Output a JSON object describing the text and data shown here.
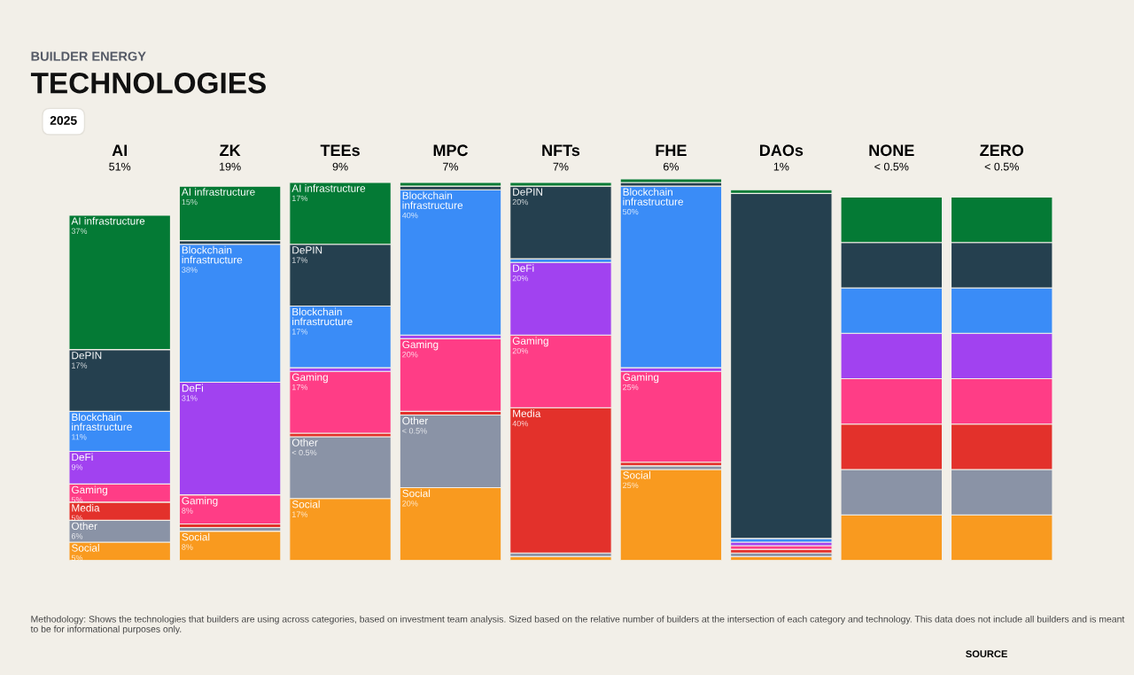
{
  "chart_data": {
    "type": "bar",
    "stacked": true,
    "subtitle": "BUILDER ENERGY",
    "title": "TECHNOLOGIES",
    "categories": [
      "AI",
      "ZK",
      "TEEs",
      "MPC",
      "NFTs",
      "FHE",
      "DAOs",
      "NONE",
      "ZERO"
    ],
    "series": [
      {
        "name": "Social",
        "color": "#f99a1f",
        "values": [
          5,
          8,
          17,
          20,
          1,
          25,
          1,
          12.5,
          12.5
        ],
        "value_labels": [
          "5%",
          "8%",
          "17%",
          "20%",
          null,
          "25%",
          null,
          null,
          null
        ]
      },
      {
        "name": "Other",
        "color": "#8a93a6",
        "values": [
          6,
          1,
          17,
          20,
          1,
          1,
          1,
          12.5,
          12.5
        ],
        "value_labels": [
          "6%",
          null,
          "< 0.5%",
          "< 0.5%",
          null,
          null,
          null,
          null,
          null
        ]
      },
      {
        "name": "Media",
        "color": "#e3312b",
        "values": [
          5,
          1,
          1,
          1,
          40,
          1,
          1,
          12.5,
          12.5
        ],
        "value_labels": [
          "5%",
          null,
          null,
          null,
          "40%",
          null,
          null,
          null,
          null
        ]
      },
      {
        "name": "Gaming",
        "color": "#ff3d86",
        "values": [
          5,
          8,
          17,
          20,
          20,
          25,
          1,
          12.5,
          12.5
        ],
        "value_labels": [
          "5%",
          "8%",
          "17%",
          "20%",
          "20%",
          "25%",
          null,
          null,
          null
        ]
      },
      {
        "name": "DeFi",
        "color": "#a142f0",
        "values": [
          9,
          31,
          1,
          1,
          20,
          1,
          1,
          12.5,
          12.5
        ],
        "value_labels": [
          "9%",
          "31%",
          null,
          null,
          "20%",
          null,
          null,
          null,
          null
        ]
      },
      {
        "name": "Blockchain infrastructure",
        "color": "#3a8cf7",
        "values": [
          11,
          38,
          17,
          40,
          1,
          50,
          1,
          12.5,
          12.5
        ],
        "value_labels": [
          "11%",
          "38%",
          "17%",
          "40%",
          null,
          "50%",
          null,
          null,
          null
        ]
      },
      {
        "name": "DePIN",
        "color": "#25404f",
        "values": [
          17,
          1,
          17,
          1,
          20,
          1,
          95,
          12.5,
          12.5
        ],
        "value_labels": [
          "17%",
          null,
          "17%",
          null,
          "20%",
          null,
          null,
          null,
          null
        ]
      },
      {
        "name": "AI infrastructure",
        "color": "#047a35",
        "values": [
          37,
          15,
          17,
          1,
          1,
          1,
          1,
          12.5,
          12.5
        ],
        "value_labels": [
          "37%",
          "15%",
          "17%",
          null,
          null,
          null,
          null,
          null,
          null
        ]
      }
    ],
    "ylim": [
      0,
      105
    ],
    "tick_labels": "x",
    "grid": false,
    "legend": false,
    "annotations": [
      "51%",
      "19%",
      "9%",
      "7%",
      "7%",
      "6%",
      "1%",
      "< 0.5%",
      "< 0.5%",
      "2025",
      "Methodology: Shows the technologies that builders are using across categories, based on investment team analysis. Sized based on the relative number of builders at the intersection of each category and technology. This data does not include all builders and is meant to be for informational purposes only.",
      "SOURCE"
    ]
  }
}
